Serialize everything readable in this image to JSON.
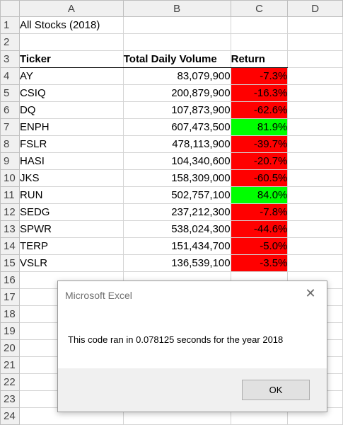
{
  "columns": [
    "A",
    "B",
    "C",
    "D"
  ],
  "row_numbers": [
    "1",
    "2",
    "3",
    "4",
    "5",
    "6",
    "7",
    "8",
    "9",
    "10",
    "11",
    "12",
    "13",
    "14",
    "15",
    "16",
    "17",
    "18",
    "19",
    "20",
    "21",
    "22",
    "23",
    "24"
  ],
  "title_cell": "All Stocks (2018)",
  "headers": {
    "ticker": "Ticker",
    "volume": "Total Daily Volume",
    "return": "Return"
  },
  "rows": [
    {
      "ticker": "AY",
      "volume": "83,079,900",
      "return": "-7.3%",
      "status": "negative"
    },
    {
      "ticker": "CSIQ",
      "volume": "200,879,900",
      "return": "-16.3%",
      "status": "negative"
    },
    {
      "ticker": "DQ",
      "volume": "107,873,900",
      "return": "-62.6%",
      "status": "negative"
    },
    {
      "ticker": "ENPH",
      "volume": "607,473,500",
      "return": "81.9%",
      "status": "positive"
    },
    {
      "ticker": "FSLR",
      "volume": "478,113,900",
      "return": "-39.7%",
      "status": "negative"
    },
    {
      "ticker": "HASI",
      "volume": "104,340,600",
      "return": "-20.7%",
      "status": "negative"
    },
    {
      "ticker": "JKS",
      "volume": "158,309,000",
      "return": "-60.5%",
      "status": "negative"
    },
    {
      "ticker": "RUN",
      "volume": "502,757,100",
      "return": "84.0%",
      "status": "positive"
    },
    {
      "ticker": "SEDG",
      "volume": "237,212,300",
      "return": "-7.8%",
      "status": "negative"
    },
    {
      "ticker": "SPWR",
      "volume": "538,024,300",
      "return": "-44.6%",
      "status": "negative"
    },
    {
      "ticker": "TERP",
      "volume": "151,434,700",
      "return": "-5.0%",
      "status": "negative"
    },
    {
      "ticker": "VSLR",
      "volume": "136,539,100",
      "return": "-3.5%",
      "status": "negative"
    }
  ],
  "colors": {
    "negative": "#ff0000",
    "positive": "#00ff00"
  },
  "dialog": {
    "title": "Microsoft Excel",
    "message": "This code ran in 0.078125 seconds for the year 2018",
    "ok_label": "OK",
    "close_icon": "close-icon"
  }
}
